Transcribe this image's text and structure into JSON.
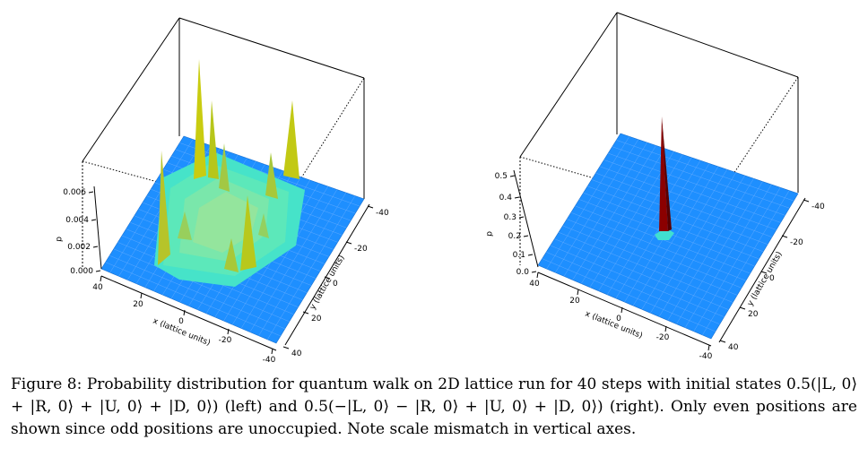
{
  "chart_data": [
    {
      "type": "surface",
      "description_side": "left",
      "zlabel": "p",
      "xlabel": "x (lattice units)",
      "ylabel": "y (lattice units)",
      "z_ticks": [
        "0.000",
        "0.002",
        "0.004",
        "0.006"
      ],
      "x_ticks": [
        "40",
        "20",
        "0",
        "-20",
        "-40"
      ],
      "y_ticks": [
        "-40",
        "-20",
        "0",
        "20",
        "40"
      ],
      "zlim": [
        0,
        0.008
      ],
      "xlim": [
        -40,
        40
      ],
      "ylim": [
        -40,
        40
      ],
      "colors": {
        "floor": "#1e90ff",
        "low": "#40e0d0",
        "high": "#d4c600",
        "grid": "#7fb7ff"
      }
    },
    {
      "type": "surface",
      "description_side": "right",
      "zlabel": "p",
      "xlabel": "x (lattice units)",
      "ylabel": "y (lattice units)",
      "z_ticks": [
        "0.0",
        "0.1",
        "0.2",
        "0.3",
        "0.4",
        "0.5"
      ],
      "x_ticks": [
        "40",
        "20",
        "0",
        "-20",
        "-40"
      ],
      "y_ticks": [
        "-40",
        "-20",
        "0",
        "20",
        "40"
      ],
      "zlim": [
        0,
        0.55
      ],
      "xlim": [
        -40,
        40
      ],
      "ylim": [
        -40,
        40
      ],
      "peak": {
        "x": 0,
        "y": 0,
        "p": 0.55
      },
      "colors": {
        "floor": "#1e90ff",
        "peak": "#8b0000",
        "grid": "#7fb7ff"
      }
    }
  ],
  "caption": {
    "figure_label": "Figure 8:",
    "text": "Probability distribution for quantum walk on 2D lattice run for 40 steps with initial states 0.5(|L, 0⟩ + |R, 0⟩ + |U, 0⟩ + |D, 0⟩) (left) and 0.5(−|L, 0⟩ − |R, 0⟩ + |U, 0⟩ + |D, 0⟩) (right). Only even positions are shown since odd positions are unoccupied. Note scale mismatch in vertical axes."
  }
}
